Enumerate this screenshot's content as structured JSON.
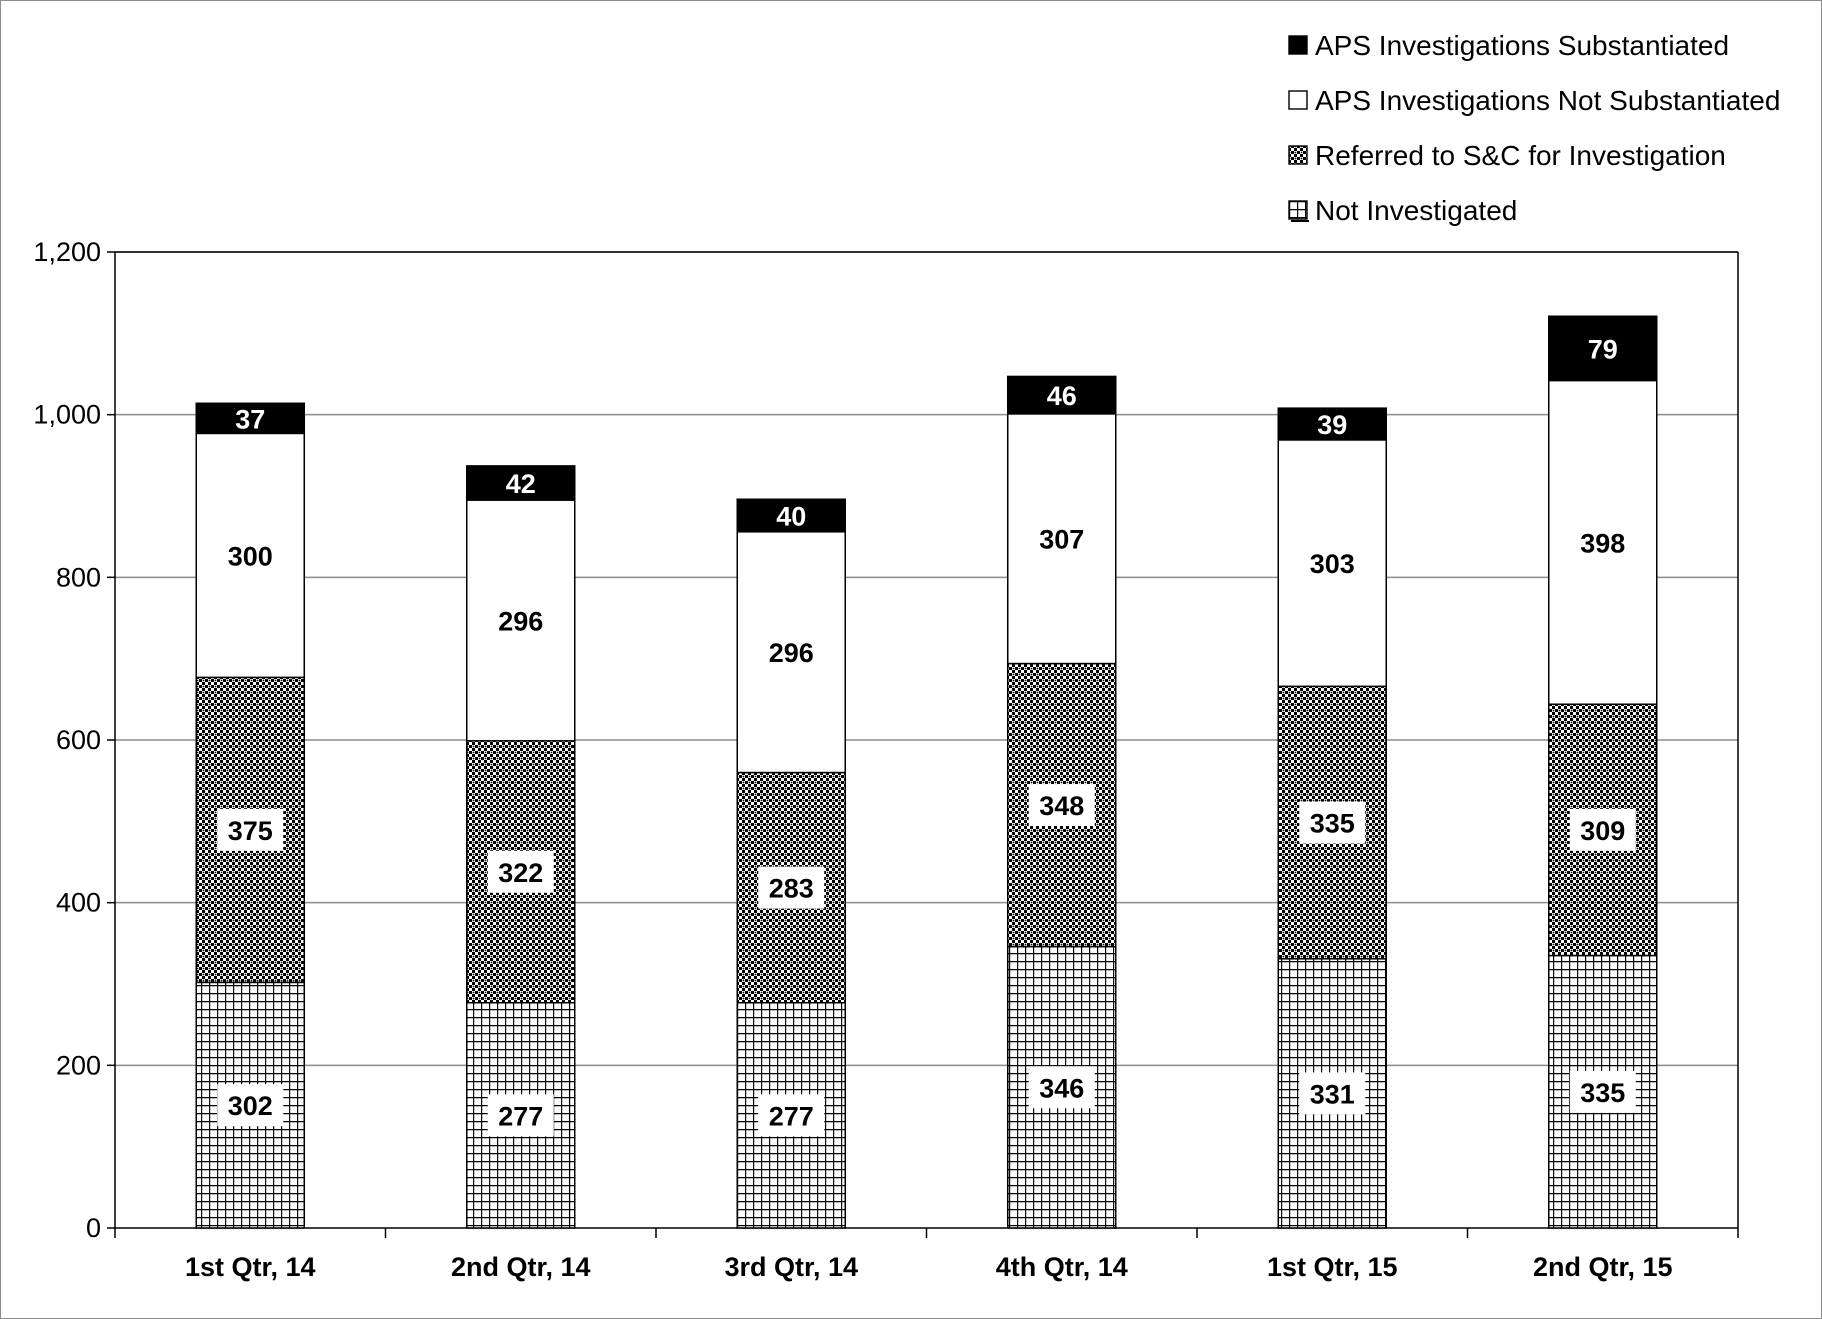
{
  "chart_data": {
    "type": "bar",
    "stacked": true,
    "title": "",
    "xlabel": "",
    "ylabel": "",
    "ylim": [
      0,
      1200
    ],
    "yticks": [
      0,
      200,
      400,
      600,
      800,
      1000,
      1200
    ],
    "ytick_labels": [
      "0",
      "200",
      "400",
      "600",
      "800",
      "1,000",
      "1,200"
    ],
    "grid": true,
    "legend_position": "top-right",
    "categories": [
      "1st Qtr, 14",
      "2nd Qtr, 14",
      "3rd Qtr, 14",
      "4th Qtr, 14",
      "1st Qtr, 15",
      "2nd Qtr, 15"
    ],
    "series": [
      {
        "name": "Not Investigated",
        "values": [
          302,
          277,
          277,
          346,
          331,
          335
        ],
        "pattern": "grid",
        "color": "#000000"
      },
      {
        "name": "Referred to S&C for Investigation",
        "values": [
          375,
          322,
          283,
          348,
          335,
          309
        ],
        "pattern": "dense-checker",
        "color": "#000000"
      },
      {
        "name": "APS Investigations Not Substantiated",
        "values": [
          300,
          296,
          296,
          307,
          303,
          398
        ],
        "pattern": "none",
        "color": "#ffffff"
      },
      {
        "name": "APS Investigations Substantiated",
        "values": [
          37,
          42,
          40,
          46,
          39,
          79
        ],
        "pattern": "solid",
        "color": "#000000"
      }
    ]
  }
}
